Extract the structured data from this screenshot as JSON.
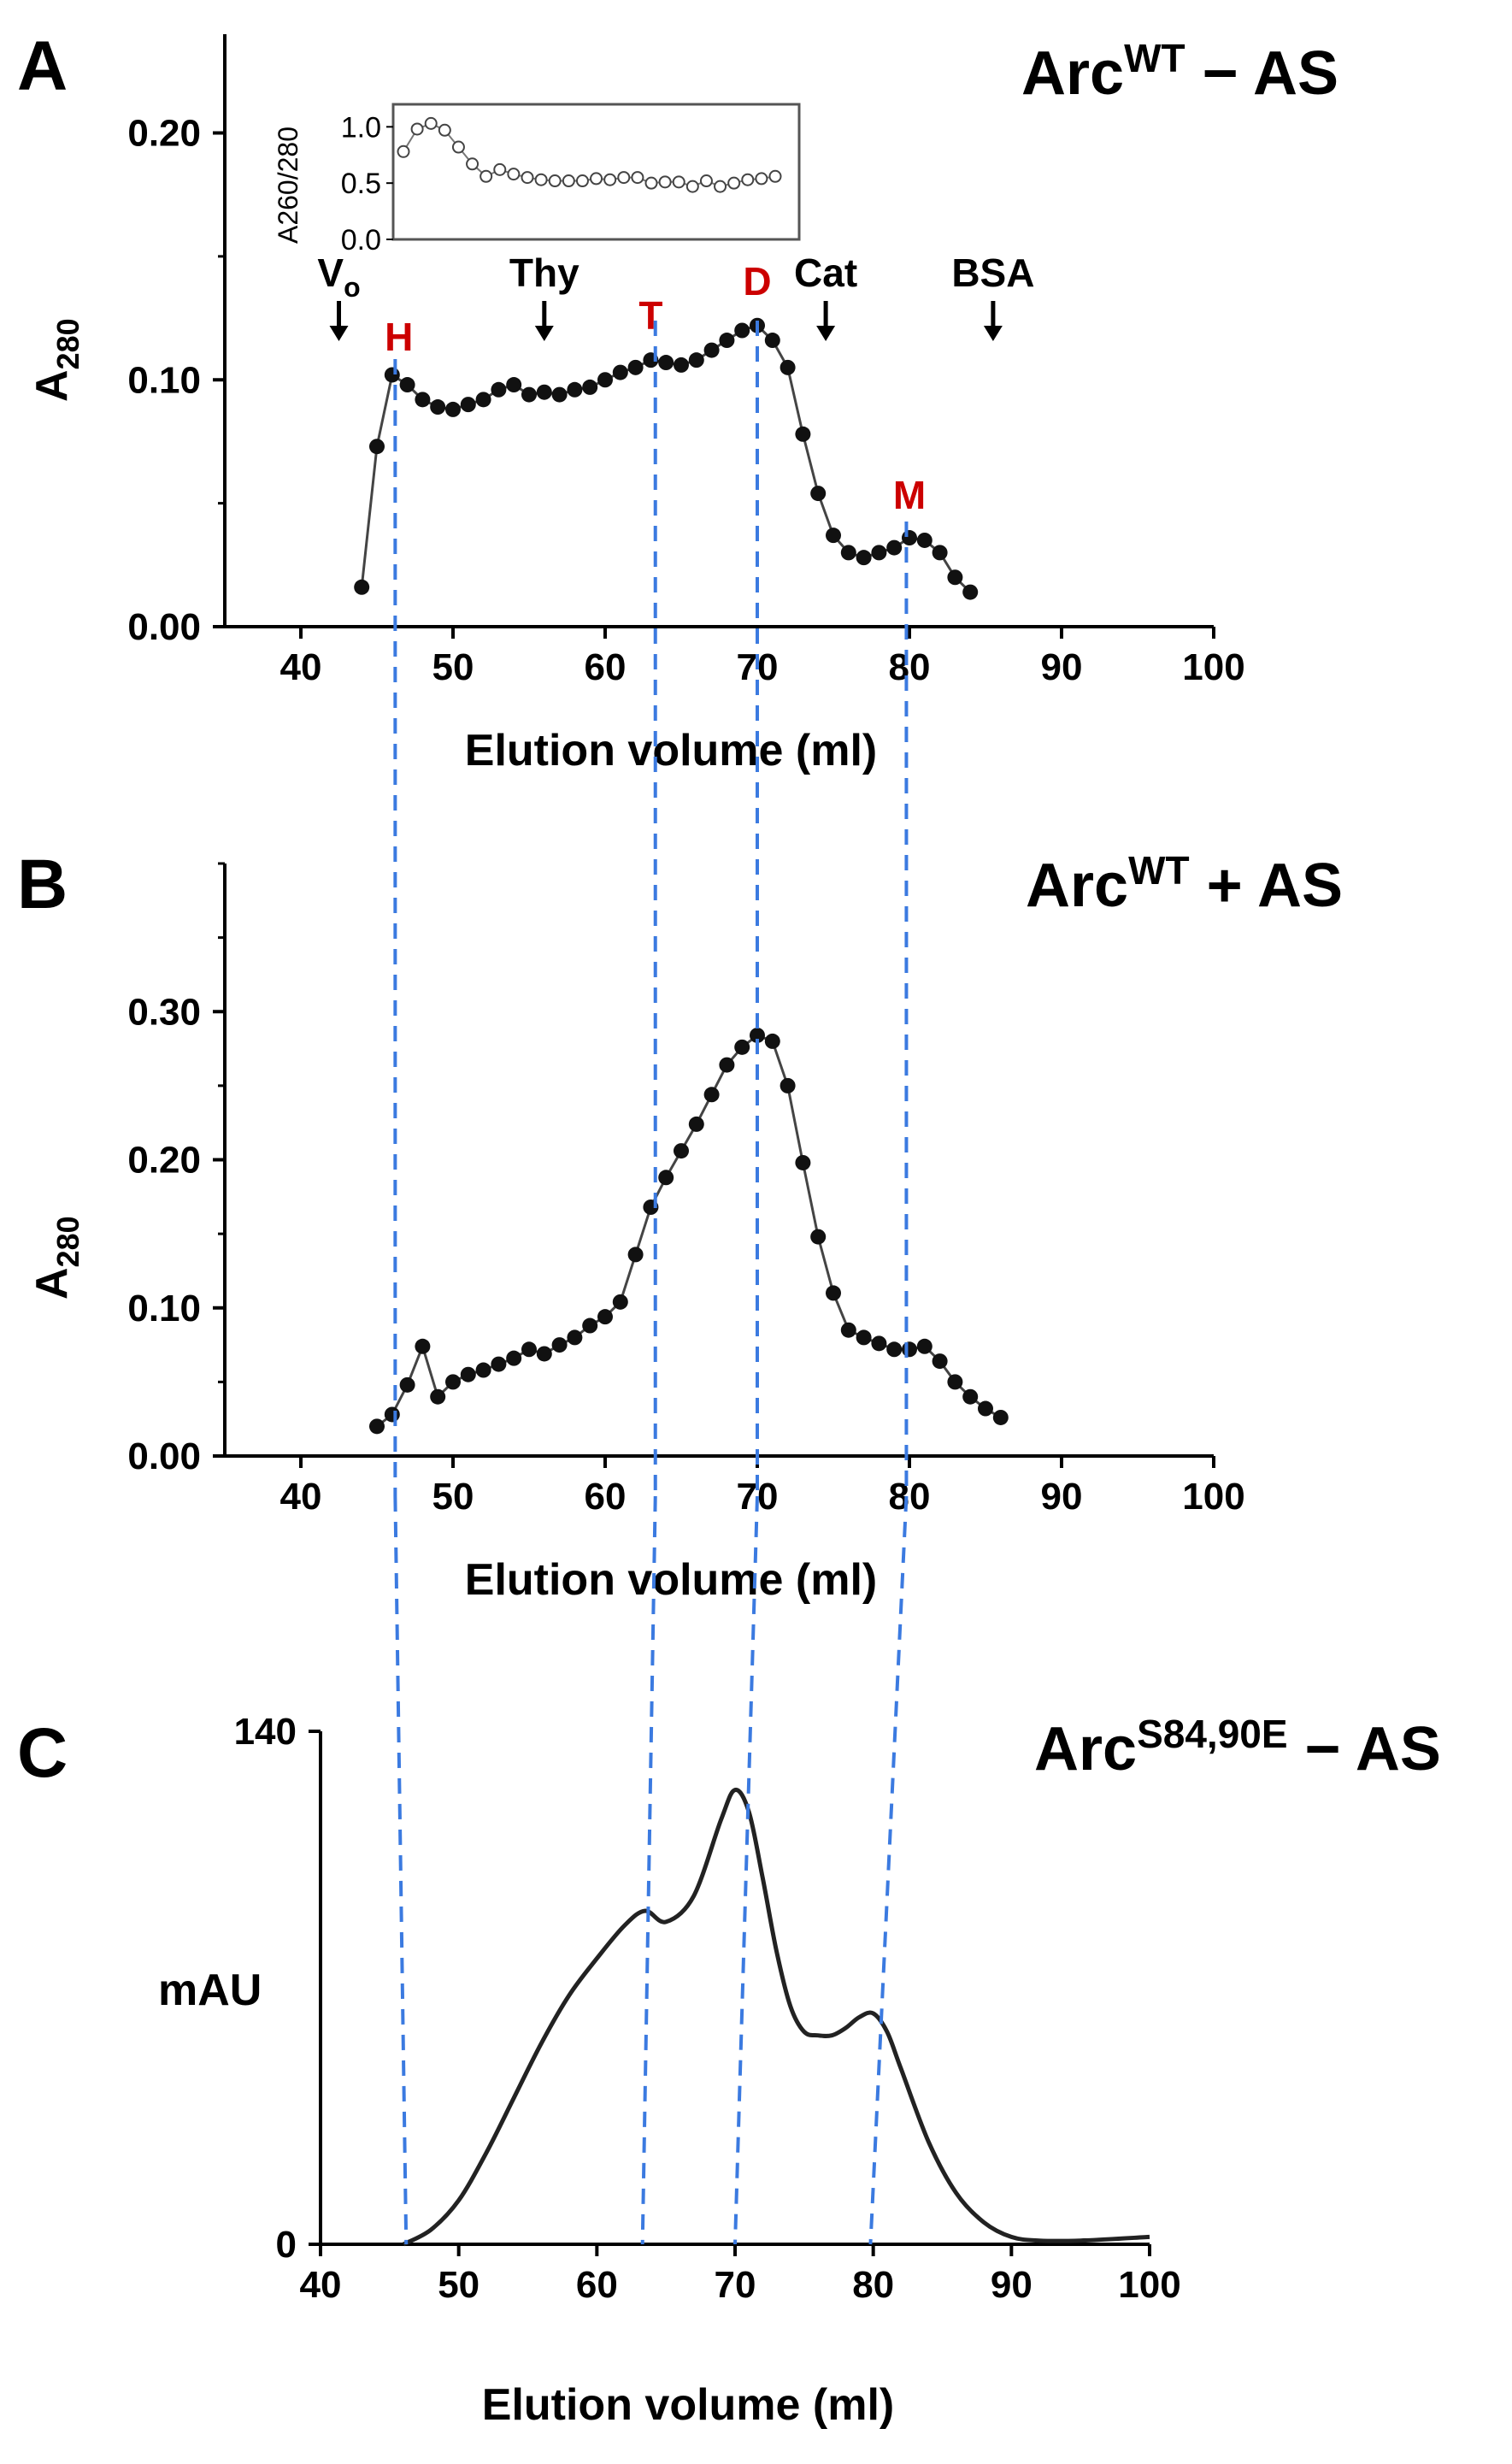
{
  "chart_data": [
    {
      "panel": "A",
      "type": "line",
      "title": "ArcWT − AS",
      "title_base": "Arc",
      "title_sup": "WT",
      "title_suffix": " − AS",
      "ylabel": "A",
      "ylabel_sub": "280",
      "xlabel": "Elution volume (ml)",
      "xlim": [
        35,
        100
      ],
      "ylim": [
        0,
        0.24
      ],
      "xticks": [
        "40",
        "50",
        "60",
        "70",
        "80",
        "90",
        "100"
      ],
      "yticks": [
        "0.00",
        "0.10",
        "0.20"
      ],
      "markers": [
        {
          "label": "V",
          "sub": "o",
          "x": 42.5
        },
        {
          "label": "Thy",
          "x": 56
        },
        {
          "label": "Cat",
          "x": 74.5
        },
        {
          "label": "BSA",
          "x": 85.5
        }
      ],
      "peaks": [
        {
          "label": "H",
          "x": 46
        },
        {
          "label": "T",
          "x": 63
        },
        {
          "label": "D",
          "x": 70
        },
        {
          "label": "M",
          "x": 80
        }
      ],
      "series": [
        {
          "name": "A280",
          "x": [
            44,
            45,
            46,
            47,
            48,
            49,
            50,
            51,
            52,
            53,
            54,
            55,
            56,
            57,
            58,
            59,
            60,
            61,
            62,
            63,
            64,
            65,
            66,
            67,
            68,
            69,
            70,
            71,
            72,
            73,
            74,
            75,
            76,
            77,
            78,
            79,
            80,
            81,
            82,
            83,
            84
          ],
          "y": [
            0.016,
            0.073,
            0.102,
            0.098,
            0.092,
            0.089,
            0.088,
            0.09,
            0.092,
            0.096,
            0.098,
            0.094,
            0.095,
            0.094,
            0.096,
            0.097,
            0.1,
            0.103,
            0.105,
            0.108,
            0.107,
            0.106,
            0.108,
            0.112,
            0.116,
            0.12,
            0.122,
            0.116,
            0.105,
            0.078,
            0.054,
            0.037,
            0.03,
            0.028,
            0.03,
            0.032,
            0.036,
            0.035,
            0.03,
            0.02,
            0.014
          ]
        }
      ],
      "inset": {
        "ylabel": "A260/280",
        "yticks": [
          "0.0",
          "0.5",
          "1.0"
        ],
        "ylim": [
          0,
          1.2
        ],
        "x": [
          44,
          45,
          46,
          47,
          48,
          49,
          50,
          51,
          52,
          53,
          54,
          55,
          56,
          57,
          58,
          59,
          60,
          61,
          62,
          63,
          64,
          65,
          66,
          67,
          68,
          69,
          70,
          71
        ],
        "y": [
          0.78,
          0.98,
          1.03,
          0.97,
          0.82,
          0.67,
          0.56,
          0.62,
          0.58,
          0.55,
          0.53,
          0.52,
          0.52,
          0.52,
          0.54,
          0.53,
          0.55,
          0.55,
          0.5,
          0.51,
          0.51,
          0.47,
          0.52,
          0.47,
          0.5,
          0.53,
          0.54,
          0.56
        ]
      }
    },
    {
      "panel": "B",
      "type": "line",
      "title": "ArcWT + AS",
      "title_base": "Arc",
      "title_sup": "WT",
      "title_suffix": " + AS",
      "ylabel": "A",
      "ylabel_sub": "280",
      "xlabel": "Elution volume (ml)",
      "xlim": [
        35,
        100
      ],
      "ylim": [
        0,
        0.4
      ],
      "xticks": [
        "40",
        "50",
        "60",
        "70",
        "80",
        "90",
        "100"
      ],
      "yticks": [
        "0.00",
        "0.10",
        "0.20",
        "0.30"
      ],
      "series": [
        {
          "name": "A280",
          "x": [
            45,
            46,
            47,
            48,
            49,
            50,
            51,
            52,
            53,
            54,
            55,
            56,
            57,
            58,
            59,
            60,
            61,
            62,
            63,
            64,
            65,
            66,
            67,
            68,
            69,
            70,
            71,
            72,
            73,
            74,
            75,
            76,
            77,
            78,
            79,
            80,
            81,
            82,
            83,
            84,
            85,
            86
          ],
          "y": [
            0.02,
            0.028,
            0.048,
            0.074,
            0.04,
            0.05,
            0.055,
            0.058,
            0.062,
            0.066,
            0.072,
            0.069,
            0.075,
            0.08,
            0.088,
            0.094,
            0.104,
            0.136,
            0.168,
            0.188,
            0.206,
            0.224,
            0.244,
            0.264,
            0.276,
            0.284,
            0.28,
            0.25,
            0.198,
            0.148,
            0.11,
            0.085,
            0.08,
            0.076,
            0.072,
            0.072,
            0.074,
            0.064,
            0.05,
            0.04,
            0.032,
            0.026
          ]
        }
      ]
    },
    {
      "panel": "C",
      "type": "line",
      "title": "ArcS84,90E − AS",
      "title_base": "Arc",
      "title_sup": "S84,90E",
      "title_suffix": " − AS",
      "ylabel": "mAU",
      "xlabel": "Elution volume (ml)",
      "xlim": [
        40,
        100
      ],
      "ylim": [
        0,
        140
      ],
      "xticks": [
        "40",
        "50",
        "60",
        "70",
        "80",
        "90",
        "100"
      ],
      "yticks": [
        "0",
        "140"
      ],
      "series": [
        {
          "name": "mAU",
          "x": [
            46,
            48,
            50,
            52,
            54,
            56,
            58,
            60,
            62,
            63.5,
            65,
            67,
            69,
            70,
            71,
            72,
            73,
            74,
            75,
            76,
            77,
            78,
            79,
            80,
            81,
            82,
            84,
            86,
            88,
            90,
            92,
            95,
            100
          ],
          "y": [
            0,
            4,
            12,
            25,
            40,
            55,
            68,
            78,
            87,
            91,
            88,
            95,
            116,
            124,
            118,
            100,
            80,
            65,
            58,
            57,
            57,
            59,
            62,
            63,
            58,
            48,
            28,
            14,
            6,
            2,
            1,
            1,
            2
          ]
        }
      ]
    }
  ]
}
